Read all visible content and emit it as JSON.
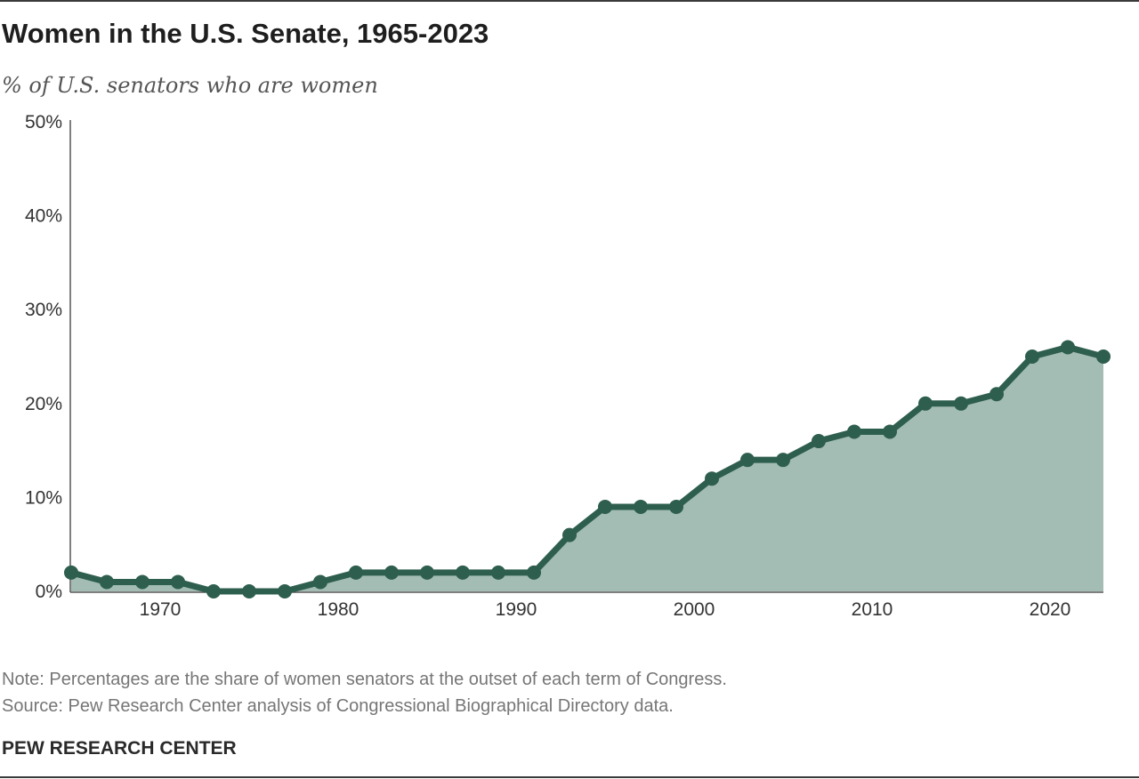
{
  "header": {
    "title": "Women in the U.S. Senate, 1965-2023",
    "subtitle": "% of U.S. senators who are women"
  },
  "footer": {
    "note": "Note: Percentages are the share of women senators at the outset of each term of Congress.",
    "source": "Source: Pew Research Center analysis of Congressional Biographical Directory data.",
    "brand": "PEW RESEARCH CENTER"
  },
  "colors": {
    "line": "#2e5e4e",
    "area": "#a3bdb4",
    "axis": "#555555"
  },
  "chart_data": {
    "type": "area",
    "title": "Women in the U.S. Senate, 1965-2023",
    "subtitle": "% of U.S. senators who are women",
    "xlabel": "",
    "ylabel": "",
    "x": [
      1965,
      1967,
      1969,
      1971,
      1973,
      1975,
      1977,
      1979,
      1981,
      1983,
      1985,
      1987,
      1989,
      1991,
      1993,
      1995,
      1997,
      1999,
      2001,
      2003,
      2005,
      2007,
      2009,
      2011,
      2013,
      2015,
      2017,
      2019,
      2021,
      2023
    ],
    "values": [
      2,
      1,
      1,
      1,
      0,
      0,
      0,
      1,
      2,
      2,
      2,
      2,
      2,
      2,
      6,
      9,
      9,
      9,
      12,
      14,
      14,
      16,
      17,
      17,
      20,
      20,
      21,
      25,
      26,
      25
    ],
    "xlim": [
      1965,
      2023
    ],
    "ylim": [
      0,
      50
    ],
    "x_ticks": [
      1970,
      1980,
      1990,
      2000,
      2010,
      2020
    ],
    "x_tick_labels": [
      "1970",
      "1980",
      "1990",
      "2000",
      "2010",
      "2020"
    ],
    "y_ticks": [
      0,
      10,
      20,
      30,
      40,
      50
    ],
    "y_tick_labels": [
      "0%",
      "10%",
      "20%",
      "30%",
      "40%",
      "50%"
    ],
    "grid": false,
    "markers": true
  }
}
